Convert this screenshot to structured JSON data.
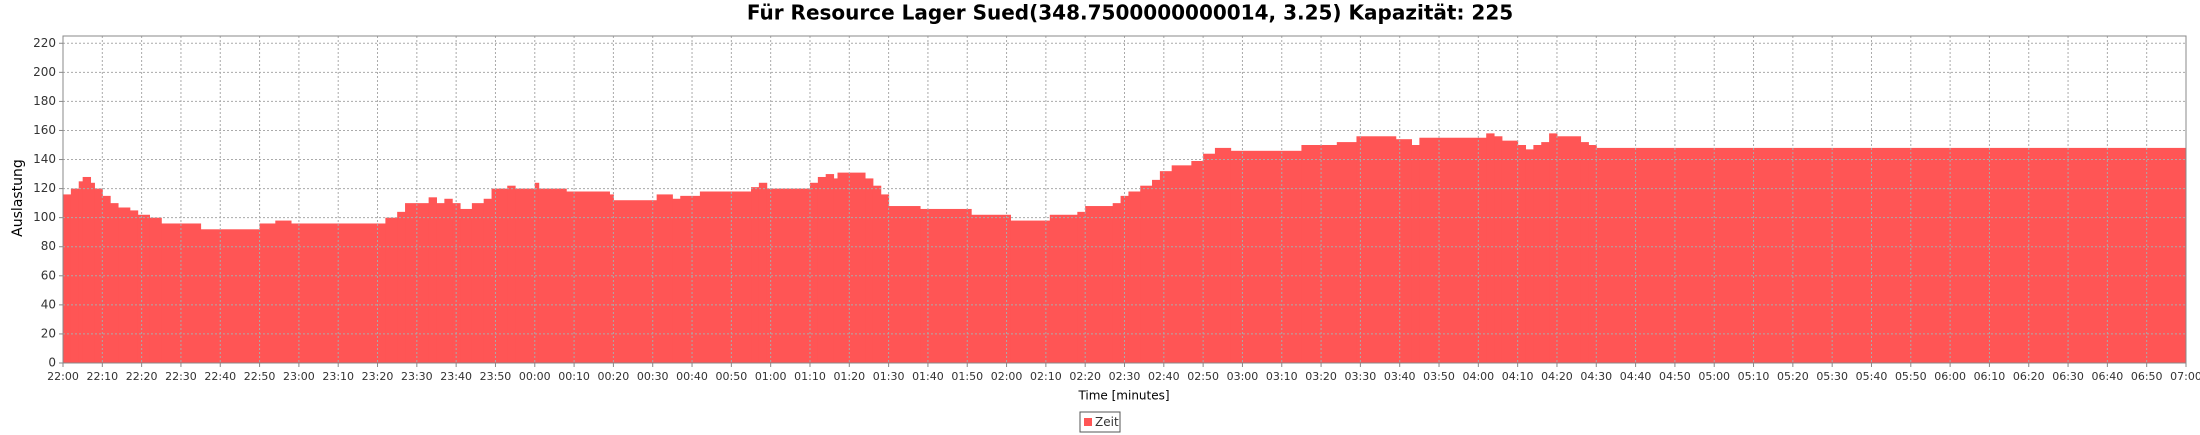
{
  "chart_data": {
    "type": "step-area",
    "title": "Für Resource Lager Sued(348.7500000000014, 3.25) Kapazität: 225",
    "xlabel": "Time [minutes]",
    "ylabel": "Auslastung",
    "x": [
      "22:00",
      "22:02",
      "22:04",
      "22:05",
      "22:07",
      "22:08",
      "22:10",
      "22:12",
      "22:14",
      "22:17",
      "22:19",
      "22:22",
      "22:25",
      "22:35",
      "22:50",
      "22:54",
      "22:58",
      "23:22",
      "23:25",
      "23:27",
      "23:33",
      "23:35",
      "23:37",
      "23:39",
      "23:41",
      "23:44",
      "23:47",
      "23:49",
      "23:53",
      "23:55",
      "00:00",
      "00:01",
      "00:08",
      "00:19",
      "00:20",
      "00:31",
      "00:35",
      "00:37",
      "00:42",
      "00:55",
      "00:57",
      "00:59",
      "01:10",
      "01:12",
      "01:14",
      "01:16",
      "01:17",
      "01:24",
      "01:26",
      "01:28",
      "01:30",
      "01:38",
      "01:51",
      "02:01",
      "02:11",
      "02:18",
      "02:20",
      "02:27",
      "02:29",
      "02:31",
      "02:34",
      "02:37",
      "02:39",
      "02:42",
      "02:47",
      "02:50",
      "02:53",
      "02:57",
      "03:15",
      "03:24",
      "03:29",
      "03:39",
      "03:43",
      "03:45",
      "04:02",
      "04:04",
      "04:06",
      "04:10",
      "04:12",
      "04:14",
      "04:16",
      "04:18",
      "04:20",
      "04:26",
      "04:28",
      "04:30"
    ],
    "series": [
      {
        "name": "Zeit",
        "color": "#ff5555",
        "values": [
          116,
          120,
          125,
          128,
          124,
          120,
          115,
          110,
          107,
          105,
          102,
          100,
          96,
          92,
          96,
          98,
          96,
          100,
          104,
          110,
          114,
          110,
          113,
          110,
          106,
          110,
          113,
          120,
          122,
          120,
          124,
          120,
          118,
          116,
          112,
          116,
          113,
          115,
          118,
          121,
          124,
          120,
          124,
          128,
          130,
          127,
          131,
          127,
          122,
          116,
          108,
          106,
          102,
          98,
          102,
          104,
          108,
          110,
          115,
          118,
          122,
          126,
          132,
          136,
          139,
          144,
          148,
          146,
          150,
          152,
          156,
          154,
          150,
          155,
          158,
          156,
          153,
          150,
          147,
          150,
          152,
          158,
          156,
          152,
          150,
          148
        ]
      }
    ],
    "xlim": [
      "22:00",
      "07:00"
    ],
    "xticks": [
      "22:00",
      "22:10",
      "22:20",
      "22:30",
      "22:40",
      "22:50",
      "23:00",
      "23:10",
      "23:20",
      "23:30",
      "23:40",
      "23:50",
      "00:00",
      "00:10",
      "00:20",
      "00:30",
      "00:40",
      "00:50",
      "01:00",
      "01:10",
      "01:20",
      "01:30",
      "01:40",
      "01:50",
      "02:00",
      "02:10",
      "02:20",
      "02:30",
      "02:40",
      "02:50",
      "03:00",
      "03:10",
      "03:20",
      "03:30",
      "03:40",
      "03:50",
      "04:00",
      "04:10",
      "04:20",
      "04:30",
      "04:40",
      "04:50",
      "05:00",
      "05:10",
      "05:20",
      "05:30",
      "05:40",
      "05:50",
      "06:00",
      "06:10",
      "06:20",
      "06:30",
      "06:40",
      "06:50",
      "07:00"
    ],
    "ylim": [
      0,
      225
    ],
    "yticks": [
      0,
      20,
      40,
      60,
      80,
      100,
      120,
      140,
      160,
      180,
      200,
      220
    ],
    "grid": true,
    "legend": "bottom"
  }
}
